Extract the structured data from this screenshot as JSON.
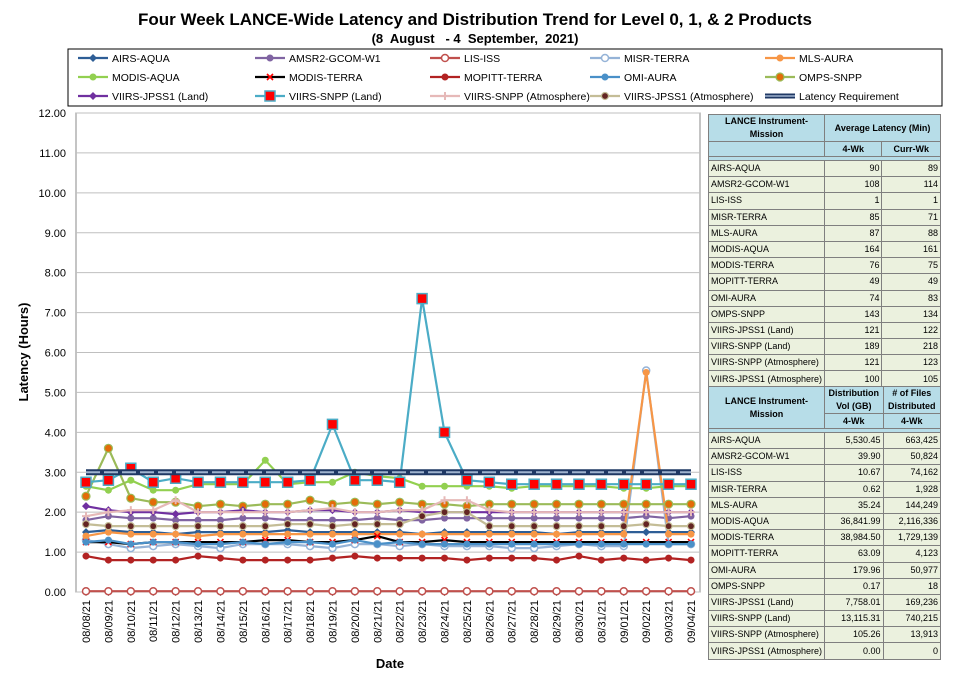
{
  "page": {
    "title": "Four Week LANCE-Wide Latency and Distribution Trend for Level 0, 1, & 2 Products",
    "subtitle": "(8  August   - 4  September,  2021)"
  },
  "chart_data": {
    "type": "line",
    "xlabel": "Date",
    "ylabel": "Latency (Hours)",
    "ylim": [
      0,
      12
    ],
    "y_ticks": [
      "0.00",
      "1.00",
      "2.00",
      "3.00",
      "4.00",
      "5.00",
      "6.00",
      "7.00",
      "8.00",
      "9.00",
      "10.00",
      "11.00",
      "12.00"
    ],
    "grid": true,
    "legend": "top",
    "categories": [
      "08/08/21",
      "08/09/21",
      "08/10/21",
      "08/11/21",
      "08/12/21",
      "08/13/21",
      "08/14/21",
      "08/15/21",
      "08/16/21",
      "08/17/21",
      "08/18/21",
      "08/19/21",
      "08/20/21",
      "08/21/21",
      "08/22/21",
      "08/23/21",
      "08/24/21",
      "08/25/21",
      "08/26/21",
      "08/27/21",
      "08/28/21",
      "08/29/21",
      "08/30/21",
      "08/31/21",
      "09/01/21",
      "09/02/21",
      "09/03/21",
      "09/04/21"
    ],
    "series": [
      {
        "name": "AIRS-AQUA",
        "color": "#2e5e96",
        "marker": "diamond",
        "values": [
          1.5,
          1.55,
          1.5,
          1.5,
          1.45,
          1.5,
          1.5,
          1.5,
          1.5,
          1.55,
          1.5,
          1.5,
          1.5,
          1.5,
          1.5,
          1.45,
          1.5,
          1.5,
          1.5,
          1.5,
          1.5,
          1.45,
          1.5,
          1.5,
          1.5,
          1.5,
          1.5,
          1.5
        ]
      },
      {
        "name": "AMSR2-GCOM-W1",
        "color": "#8064a2",
        "marker": "circle",
        "values": [
          1.8,
          1.9,
          1.85,
          1.85,
          1.8,
          1.8,
          1.8,
          1.85,
          1.85,
          1.8,
          1.8,
          1.8,
          1.8,
          1.85,
          1.8,
          1.8,
          1.85,
          1.85,
          1.85,
          1.85,
          1.85,
          1.85,
          1.85,
          1.85,
          1.85,
          1.9,
          1.85,
          1.9
        ]
      },
      {
        "name": "LIS-ISS",
        "color": "#c0504d",
        "marker": "circle-open",
        "values": [
          0.02,
          0.02,
          0.02,
          0.02,
          0.02,
          0.02,
          0.02,
          0.02,
          0.02,
          0.02,
          0.02,
          0.02,
          0.02,
          0.02,
          0.02,
          0.02,
          0.02,
          0.02,
          0.02,
          0.02,
          0.02,
          0.02,
          0.02,
          0.02,
          0.02,
          0.02,
          0.02,
          0.02
        ]
      },
      {
        "name": "MISR-TERRA",
        "color": "#95b3d7",
        "marker": "circle-open",
        "values": [
          1.3,
          1.2,
          1.1,
          1.15,
          1.2,
          1.15,
          1.1,
          1.2,
          1.2,
          1.2,
          1.15,
          1.1,
          1.2,
          1.2,
          1.15,
          1.2,
          1.15,
          1.15,
          1.15,
          1.1,
          1.1,
          1.15,
          1.2,
          1.15,
          1.15,
          5.55,
          1.2,
          1.2
        ]
      },
      {
        "name": "MLS-AURA",
        "color": "#f79646",
        "marker": "circle",
        "values": [
          1.4,
          1.5,
          1.45,
          1.45,
          1.45,
          1.4,
          1.45,
          1.45,
          1.45,
          1.45,
          1.45,
          1.45,
          1.45,
          1.45,
          1.45,
          1.45,
          1.45,
          1.45,
          1.45,
          1.45,
          1.45,
          1.45,
          1.45,
          1.45,
          1.45,
          5.5,
          1.45,
          1.45
        ]
      },
      {
        "name": "MODIS-AQUA",
        "color": "#92d050",
        "marker": "circle",
        "values": [
          2.65,
          2.55,
          2.8,
          2.55,
          2.55,
          2.7,
          2.7,
          2.7,
          3.3,
          2.7,
          2.75,
          2.75,
          3.0,
          2.9,
          2.85,
          2.65,
          2.65,
          2.65,
          2.65,
          2.6,
          2.65,
          2.65,
          2.65,
          2.65,
          2.6,
          2.6,
          2.65,
          2.65
        ]
      },
      {
        "name": "MODIS-TERRA",
        "color": "#000000",
        "marker": "x",
        "values": [
          1.25,
          1.25,
          1.2,
          1.25,
          1.25,
          1.25,
          1.25,
          1.25,
          1.3,
          1.3,
          1.25,
          1.25,
          1.3,
          1.4,
          1.25,
          1.25,
          1.3,
          1.25,
          1.25,
          1.25,
          1.25,
          1.25,
          1.25,
          1.25,
          1.25,
          1.25,
          1.25,
          1.25
        ]
      },
      {
        "name": "MOPITT-TERRA",
        "color": "#b22222",
        "marker": "circle",
        "values": [
          0.9,
          0.8,
          0.8,
          0.8,
          0.8,
          0.9,
          0.85,
          0.8,
          0.8,
          0.8,
          0.8,
          0.85,
          0.9,
          0.85,
          0.85,
          0.85,
          0.85,
          0.8,
          0.85,
          0.85,
          0.85,
          0.8,
          0.9,
          0.8,
          0.85,
          0.8,
          0.85,
          0.8
        ]
      },
      {
        "name": "OMI-AURA",
        "color": "#4a90c8",
        "marker": "circle",
        "values": [
          1.25,
          1.3,
          1.2,
          1.25,
          1.25,
          1.2,
          1.2,
          1.25,
          1.2,
          1.25,
          1.25,
          1.2,
          1.3,
          1.2,
          1.25,
          1.2,
          1.2,
          1.2,
          1.2,
          1.2,
          1.2,
          1.2,
          1.2,
          1.2,
          1.2,
          1.2,
          1.2,
          1.2
        ]
      },
      {
        "name": "OMPS-SNPP",
        "color": "#9bbb59",
        "marker": "circle-orange",
        "values": [
          2.4,
          3.6,
          2.35,
          2.25,
          2.25,
          2.15,
          2.2,
          2.15,
          2.2,
          2.2,
          2.3,
          2.2,
          2.25,
          2.2,
          2.25,
          2.2,
          2.2,
          2.15,
          2.2,
          2.2,
          2.2,
          2.2,
          2.2,
          2.2,
          2.2,
          2.2,
          2.2,
          2.2
        ]
      },
      {
        "name": "VIIRS-JPSS1 (Land)",
        "color": "#7030a0",
        "marker": "diamond",
        "values": [
          2.15,
          2.05,
          2.0,
          2.0,
          1.95,
          2.0,
          2.0,
          2.05,
          2.0,
          2.0,
          2.05,
          2.05,
          2.0,
          2.0,
          2.05,
          2.0,
          2.0,
          2.0,
          2.0,
          2.0,
          2.0,
          2.0,
          2.0,
          2.0,
          2.0,
          2.0,
          2.0,
          2.0
        ]
      },
      {
        "name": "VIIRS-SNPP (Land)",
        "color": "#4bacc6",
        "marker": "square",
        "values": [
          2.75,
          2.8,
          3.1,
          2.75,
          2.85,
          2.75,
          2.75,
          2.75,
          2.75,
          2.75,
          2.8,
          4.2,
          2.8,
          2.8,
          2.75,
          7.35,
          4.0,
          2.8,
          2.75,
          2.7,
          2.7,
          2.7,
          2.7,
          2.7,
          2.7,
          2.7,
          2.7,
          2.7
        ]
      },
      {
        "name": "VIIRS-SNPP (Atmosphere)",
        "color": "#e6b9b8",
        "marker": "plus",
        "values": [
          1.9,
          2.0,
          2.05,
          2.05,
          2.3,
          2.0,
          2.0,
          2.0,
          2.0,
          2.0,
          2.05,
          2.1,
          2.0,
          2.0,
          2.05,
          2.05,
          2.3,
          2.3,
          2.05,
          2.0,
          2.0,
          2.0,
          2.0,
          2.0,
          2.0,
          2.0,
          2.0,
          2.0
        ]
      },
      {
        "name": "VIIRS-JPSS1 (Atmosphere)",
        "color": "#c4bd97",
        "marker": "circle-dark",
        "values": [
          1.7,
          1.65,
          1.65,
          1.65,
          1.65,
          1.65,
          1.65,
          1.65,
          1.65,
          1.7,
          1.7,
          1.65,
          1.7,
          1.7,
          1.7,
          1.9,
          2.0,
          2.0,
          1.65,
          1.65,
          1.65,
          1.65,
          1.65,
          1.65,
          1.65,
          1.7,
          1.65,
          1.65
        ]
      },
      {
        "name": "Latency Requirement",
        "color": "#1f3864",
        "marker": "none",
        "values": [
          3,
          3,
          3,
          3,
          3,
          3,
          3,
          3,
          3,
          3,
          3,
          3,
          3,
          3,
          3,
          3,
          3,
          3,
          3,
          3,
          3,
          3,
          3,
          3,
          3,
          3,
          3,
          3
        ]
      }
    ]
  },
  "table1": {
    "h_instrument": "LANCE Instrument-Mission",
    "h_latency": "Average Latency (Min)",
    "h_4wk": "4-Wk",
    "h_currwk": "Curr-Wk",
    "rows": [
      {
        "name": "AIRS-AQUA",
        "a": "90",
        "b": "89"
      },
      {
        "name": "AMSR2-GCOM-W1",
        "a": "108",
        "b": "114"
      },
      {
        "name": "LIS-ISS",
        "a": "1",
        "b": "1"
      },
      {
        "name": "MISR-TERRA",
        "a": "85",
        "b": "71"
      },
      {
        "name": "MLS-AURA",
        "a": "87",
        "b": "88"
      },
      {
        "name": "MODIS-AQUA",
        "a": "164",
        "b": "161"
      },
      {
        "name": "MODIS-TERRA",
        "a": "76",
        "b": "75"
      },
      {
        "name": "MOPITT-TERRA",
        "a": "49",
        "b": "49"
      },
      {
        "name": "OMI-AURA",
        "a": "74",
        "b": "83"
      },
      {
        "name": "OMPS-SNPP",
        "a": "143",
        "b": "134"
      },
      {
        "name": "VIIRS-JPSS1 (Land)",
        "a": "121",
        "b": "122"
      },
      {
        "name": "VIIRS-SNPP (Land)",
        "a": "189",
        "b": "218"
      },
      {
        "name": "VIIRS-SNPP (Atmosphere)",
        "a": "121",
        "b": "123"
      },
      {
        "name": "VIIRS-JPSS1 (Atmosphere)",
        "a": "100",
        "b": "105"
      }
    ]
  },
  "table2": {
    "h_instrument": "LANCE Instrument-Mission",
    "h_vol": "Distribution Vol (GB)",
    "h_files": "# of Files Distributed",
    "h_4wk_a": "4-Wk",
    "h_4wk_b": "4-Wk",
    "rows": [
      {
        "name": "AIRS-AQUA",
        "a": "5,530.45",
        "b": "663,425"
      },
      {
        "name": "AMSR2-GCOM-W1",
        "a": "39.90",
        "b": "50,824"
      },
      {
        "name": "LIS-ISS",
        "a": "10.67",
        "b": "74,162"
      },
      {
        "name": "MISR-TERRA",
        "a": "0.62",
        "b": "1,928"
      },
      {
        "name": "MLS-AURA",
        "a": "35.24",
        "b": "144,249"
      },
      {
        "name": "MODIS-AQUA",
        "a": "36,841.99",
        "b": "2,116,336"
      },
      {
        "name": "MODIS-TERRA",
        "a": "38,984.50",
        "b": "1,729,139"
      },
      {
        "name": "MOPITT-TERRA",
        "a": "63.09",
        "b": "4,123"
      },
      {
        "name": "OMI-AURA",
        "a": "179.96",
        "b": "50,977"
      },
      {
        "name": "OMPS-SNPP",
        "a": "0.17",
        "b": "18"
      },
      {
        "name": "VIIRS-JPSS1 (Land)",
        "a": "7,758.01",
        "b": "169,236"
      },
      {
        "name": "VIIRS-SNPP (Land)",
        "a": "13,115.31",
        "b": "740,215"
      },
      {
        "name": "VIIRS-SNPP (Atmosphere)",
        "a": "105.26",
        "b": "13,913"
      },
      {
        "name": "VIIRS-JPSS1 (Atmosphere)",
        "a": "0.00",
        "b": "0"
      }
    ]
  }
}
